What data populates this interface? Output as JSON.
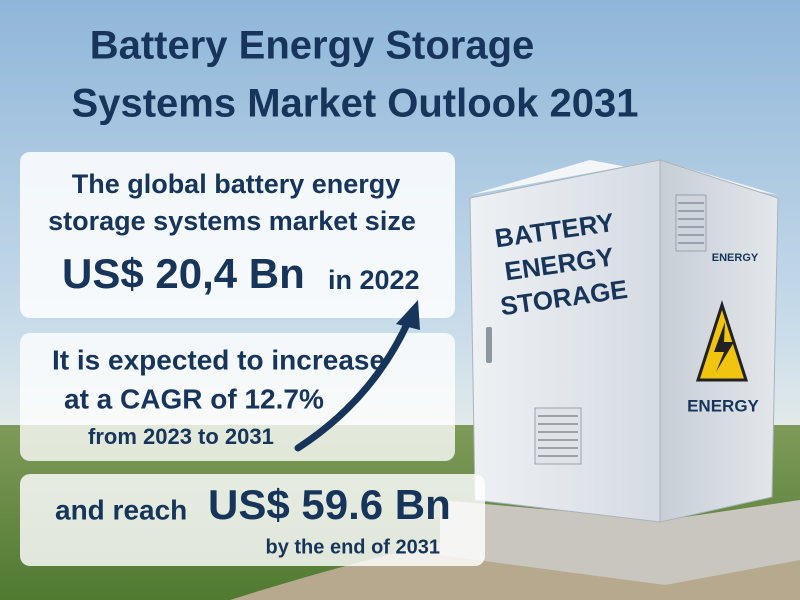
{
  "title": {
    "lines": [
      "Battery Energy Storage",
      "Systems Market Outlook 2031"
    ]
  },
  "market_size": {
    "lines": [
      "The global battery energy",
      "storage systems market size"
    ],
    "value": "US$ 20,4 Bn",
    "year": "in 2022"
  },
  "growth": {
    "lines": [
      "It is expected to increase",
      "at a CAGR of 12.7%",
      "from 2023 to 2031"
    ]
  },
  "forecast": {
    "prefix": "and reach",
    "value": "US$ 59.6 Bn",
    "note": "by the end of 2031"
  },
  "cabinet": {
    "front_label": [
      "BATTERY",
      "ENERGY",
      "STORAGE"
    ],
    "side_label": "ENERGY",
    "warning_label": "ENERGY"
  }
}
